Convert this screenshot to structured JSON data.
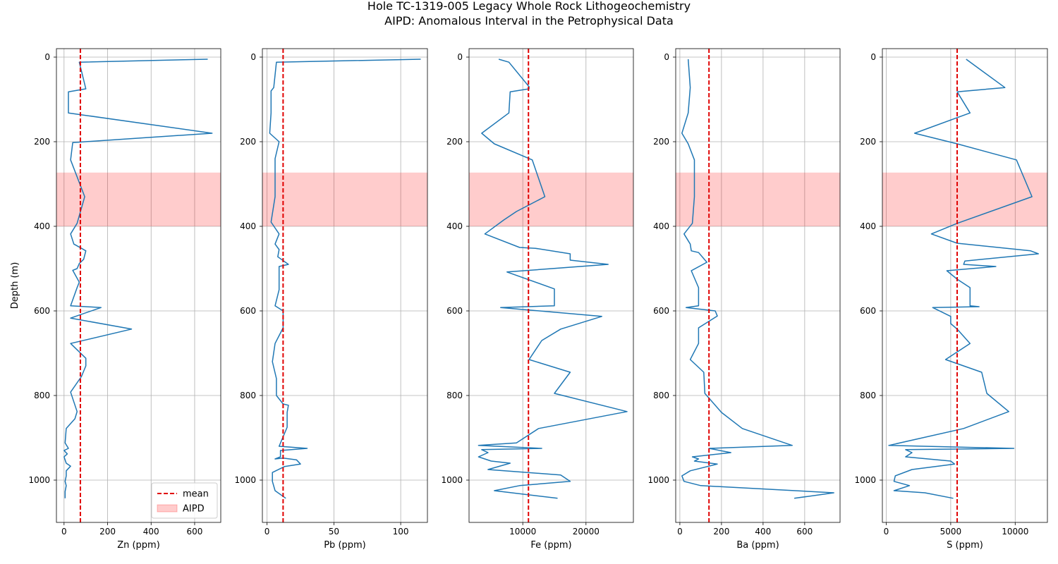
{
  "figure": {
    "title_line1": "Hole TC-1319-005 Legacy Whole Rock Lithogeochemistry",
    "title_line2": "AIPD: Anomalous Interval in the Petrophysical Data"
  },
  "chart_data": [
    {
      "type": "line",
      "xlabel": "Zn (ppm)",
      "ylabel": "Depth (m)",
      "xlim": [
        -35,
        720
      ],
      "ylim": [
        1100,
        -20
      ],
      "y_inverted": true,
      "xticks": [
        0,
        200,
        400,
        600
      ],
      "yticks": [
        0,
        200,
        400,
        600,
        800,
        1000
      ],
      "grid": true,
      "mean": 75,
      "aipd": [
        273,
        400
      ],
      "legend": {
        "position": "lower-right",
        "entries": [
          {
            "label": "mean",
            "style": "dashed-red"
          },
          {
            "label": "AIPD",
            "style": "red-band"
          }
        ]
      },
      "series": [
        {
          "color": "#1f77b4",
          "points": [
            [
              660,
              5
            ],
            [
              70,
              12
            ],
            [
              100,
              75
            ],
            [
              20,
              82
            ],
            [
              20,
              132
            ],
            [
              680,
              180
            ],
            [
              40,
              202
            ],
            [
              30,
              243
            ],
            [
              95,
              330
            ],
            [
              60,
              393
            ],
            [
              30,
              418
            ],
            [
              45,
              442
            ],
            [
              80,
              452
            ],
            [
              100,
              458
            ],
            [
              90,
              478
            ],
            [
              70,
              488
            ],
            [
              60,
              500
            ],
            [
              40,
              504
            ],
            [
              70,
              532
            ],
            [
              60,
              545
            ],
            [
              30,
              588
            ],
            [
              170,
              592
            ],
            [
              30,
              617
            ],
            [
              310,
              643
            ],
            [
              30,
              677
            ],
            [
              100,
              712
            ],
            [
              100,
              730
            ],
            [
              80,
              755
            ],
            [
              30,
              792
            ],
            [
              60,
              838
            ],
            [
              50,
              855
            ],
            [
              10,
              878
            ],
            [
              5,
              912
            ],
            [
              20,
              925
            ],
            [
              0,
              930
            ],
            [
              15,
              938
            ],
            [
              0,
              945
            ],
            [
              10,
              960
            ],
            [
              30,
              967
            ],
            [
              10,
              978
            ],
            [
              10,
              990
            ],
            [
              5,
              1003
            ],
            [
              10,
              1013
            ],
            [
              5,
              1027
            ],
            [
              5,
              1043
            ]
          ]
        }
      ]
    },
    {
      "type": "line",
      "xlabel": "Pb (ppm)",
      "ylabel": "",
      "xlim": [
        -3.5,
        120
      ],
      "ylim": [
        1100,
        -20
      ],
      "y_inverted": true,
      "xticks": [
        0,
        50,
        100
      ],
      "yticks": [
        0,
        200,
        400,
        600,
        800,
        1000
      ],
      "grid": true,
      "mean": 12,
      "aipd": [
        273,
        400
      ],
      "series": [
        {
          "color": "#1f77b4",
          "points": [
            [
              115,
              5
            ],
            [
              7,
              12
            ],
            [
              5,
              72
            ],
            [
              3,
              80
            ],
            [
              3,
              132
            ],
            [
              2,
              180
            ],
            [
              9,
              200
            ],
            [
              6,
              240
            ],
            [
              6,
              330
            ],
            [
              3,
              390
            ],
            [
              9,
              418
            ],
            [
              6,
              442
            ],
            [
              9,
              455
            ],
            [
              8,
              472
            ],
            [
              16,
              490
            ],
            [
              9,
              495
            ],
            [
              9,
              550
            ],
            [
              6,
              588
            ],
            [
              12,
              600
            ],
            [
              12,
              640
            ],
            [
              6,
              677
            ],
            [
              4,
              720
            ],
            [
              7,
              760
            ],
            [
              7,
              800
            ],
            [
              12,
              820
            ],
            [
              16,
              823
            ],
            [
              15,
              840
            ],
            [
              15,
              875
            ],
            [
              9,
              920
            ],
            [
              30,
              925
            ],
            [
              10,
              930
            ],
            [
              10,
              945
            ],
            [
              6,
              950
            ],
            [
              12,
              948
            ],
            [
              22,
              952
            ],
            [
              25,
              962
            ],
            [
              13,
              968
            ],
            [
              4,
              982
            ],
            [
              4,
              1003
            ],
            [
              6,
              1025
            ],
            [
              14,
              1043
            ]
          ]
        }
      ]
    },
    {
      "type": "line",
      "xlabel": "Fe (ppm)",
      "ylabel": "",
      "xlim": [
        1500,
        27500
      ],
      "ylim": [
        1100,
        -20
      ],
      "y_inverted": true,
      "xticks": [
        10000,
        20000
      ],
      "xtick_labels": [
        "10000",
        "20000"
      ],
      "yticks": [
        0,
        200,
        400,
        600,
        800,
        1000
      ],
      "grid": true,
      "mean": 10900,
      "aipd": [
        273,
        400
      ],
      "series": [
        {
          "color": "#1f77b4",
          "points": [
            [
              6200,
              5
            ],
            [
              7800,
              12
            ],
            [
              11000,
              70
            ],
            [
              11000,
              75
            ],
            [
              8000,
              82
            ],
            [
              7800,
              132
            ],
            [
              3500,
              180
            ],
            [
              5500,
              205
            ],
            [
              11500,
              243
            ],
            [
              13500,
              330
            ],
            [
              9000,
              365
            ],
            [
              7000,
              385
            ],
            [
              4000,
              418
            ],
            [
              9500,
              450
            ],
            [
              12000,
              452
            ],
            [
              17500,
              465
            ],
            [
              17500,
              480
            ],
            [
              23500,
              490
            ],
            [
              7500,
              508
            ],
            [
              15000,
              548
            ],
            [
              15000,
              588
            ],
            [
              6500,
              592
            ],
            [
              22500,
              613
            ],
            [
              16000,
              643
            ],
            [
              13000,
              670
            ],
            [
              11000,
              715
            ],
            [
              17500,
              745
            ],
            [
              15000,
              795
            ],
            [
              26500,
              838
            ],
            [
              12500,
              878
            ],
            [
              9000,
              912
            ],
            [
              3000,
              918
            ],
            [
              13000,
              925
            ],
            [
              3500,
              928
            ],
            [
              4500,
              935
            ],
            [
              3000,
              945
            ],
            [
              5000,
              955
            ],
            [
              8000,
              960
            ],
            [
              4500,
              975
            ],
            [
              16000,
              988
            ],
            [
              17500,
              1003
            ],
            [
              9500,
              1013
            ],
            [
              5500,
              1025
            ],
            [
              15500,
              1043
            ]
          ]
        }
      ]
    },
    {
      "type": "line",
      "xlabel": "Ba (ppm)",
      "ylabel": "",
      "xlim": [
        -20,
        770
      ],
      "ylim": [
        1100,
        -20
      ],
      "y_inverted": true,
      "xticks": [
        0,
        200,
        400,
        600
      ],
      "yticks": [
        0,
        200,
        400,
        600,
        800,
        1000
      ],
      "grid": true,
      "mean": 140,
      "aipd": [
        273,
        400
      ],
      "series": [
        {
          "color": "#1f77b4",
          "points": [
            [
              40,
              5
            ],
            [
              50,
              72
            ],
            [
              40,
              132
            ],
            [
              10,
              180
            ],
            [
              40,
              205
            ],
            [
              70,
              243
            ],
            [
              70,
              330
            ],
            [
              60,
              393
            ],
            [
              20,
              418
            ],
            [
              50,
              442
            ],
            [
              55,
              458
            ],
            [
              90,
              462
            ],
            [
              130,
              485
            ],
            [
              55,
              505
            ],
            [
              90,
              545
            ],
            [
              90,
              588
            ],
            [
              30,
              592
            ],
            [
              170,
              600
            ],
            [
              180,
              612
            ],
            [
              90,
              640
            ],
            [
              90,
              677
            ],
            [
              50,
              715
            ],
            [
              115,
              745
            ],
            [
              120,
              795
            ],
            [
              200,
              840
            ],
            [
              300,
              878
            ],
            [
              540,
              918
            ],
            [
              140,
              925
            ],
            [
              245,
              935
            ],
            [
              60,
              945
            ],
            [
              90,
              950
            ],
            [
              70,
              955
            ],
            [
              180,
              962
            ],
            [
              50,
              978
            ],
            [
              10,
              990
            ],
            [
              20,
              1003
            ],
            [
              100,
              1013
            ],
            [
              740,
              1030
            ],
            [
              550,
              1043
            ]
          ]
        }
      ]
    },
    {
      "type": "line",
      "xlabel": "S (ppm)",
      "ylabel": "",
      "xlim": [
        -300,
        12500
      ],
      "ylim": [
        1100,
        -20
      ],
      "y_inverted": true,
      "xticks": [
        0,
        5000,
        10000
      ],
      "yticks": [
        0,
        200,
        400,
        600,
        800,
        1000
      ],
      "grid": true,
      "mean": 5500,
      "aipd": [
        273,
        400
      ],
      "series": [
        {
          "color": "#1f77b4",
          "points": [
            [
              6200,
              5
            ],
            [
              9200,
              72
            ],
            [
              5500,
              82
            ],
            [
              6500,
              132
            ],
            [
              2200,
              180
            ],
            [
              5500,
              205
            ],
            [
              10100,
              243
            ],
            [
              11300,
              330
            ],
            [
              5500,
              393
            ],
            [
              3500,
              418
            ],
            [
              5500,
              440
            ],
            [
              11200,
              458
            ],
            [
              11800,
              465
            ],
            [
              6100,
              482
            ],
            [
              6000,
              490
            ],
            [
              8500,
              495
            ],
            [
              4700,
              505
            ],
            [
              5500,
              525
            ],
            [
              6500,
              545
            ],
            [
              6500,
              588
            ],
            [
              7200,
              590
            ],
            [
              3600,
              592
            ],
            [
              5000,
              613
            ],
            [
              5000,
              630
            ],
            [
              5500,
              643
            ],
            [
              6500,
              677
            ],
            [
              4600,
              715
            ],
            [
              7400,
              745
            ],
            [
              7800,
              795
            ],
            [
              9500,
              838
            ],
            [
              6000,
              878
            ],
            [
              200,
              918
            ],
            [
              9900,
              925
            ],
            [
              1500,
              928
            ],
            [
              2000,
              935
            ],
            [
              1500,
              945
            ],
            [
              5000,
              955
            ],
            [
              5300,
              962
            ],
            [
              2000,
              975
            ],
            [
              700,
              990
            ],
            [
              600,
              1003
            ],
            [
              1800,
              1013
            ],
            [
              600,
              1025
            ],
            [
              3000,
              1030
            ],
            [
              5200,
              1043
            ]
          ]
        }
      ]
    }
  ]
}
